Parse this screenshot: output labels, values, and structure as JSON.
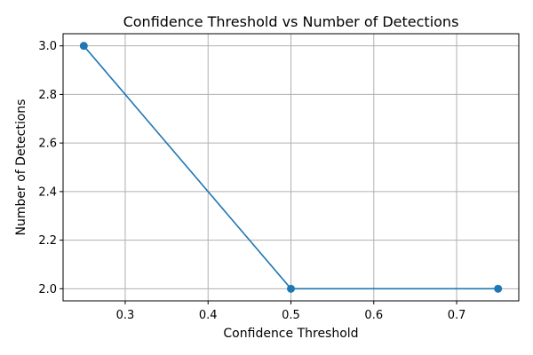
{
  "chart_data": {
    "type": "line",
    "title": "Confidence Threshold vs Number of Detections",
    "xlabel": "Confidence Threshold",
    "ylabel": "Number of Detections",
    "xlim": [
      0.225,
      0.775
    ],
    "ylim": [
      1.95,
      3.05
    ],
    "xticks": [
      0.3,
      0.4,
      0.5,
      0.6,
      0.7
    ],
    "xtick_labels": [
      "0.3",
      "0.4",
      "0.5",
      "0.6",
      "0.7"
    ],
    "yticks": [
      2.0,
      2.2,
      2.4,
      2.6,
      2.8,
      3.0
    ],
    "ytick_labels": [
      "2.0",
      "2.2",
      "2.4",
      "2.6",
      "2.8",
      "3.0"
    ],
    "grid": true,
    "series": [
      {
        "x": [
          0.25,
          0.5,
          0.75
        ],
        "values": [
          3,
          2,
          2
        ],
        "color": "#1f77b4",
        "marker": "circle"
      }
    ]
  }
}
